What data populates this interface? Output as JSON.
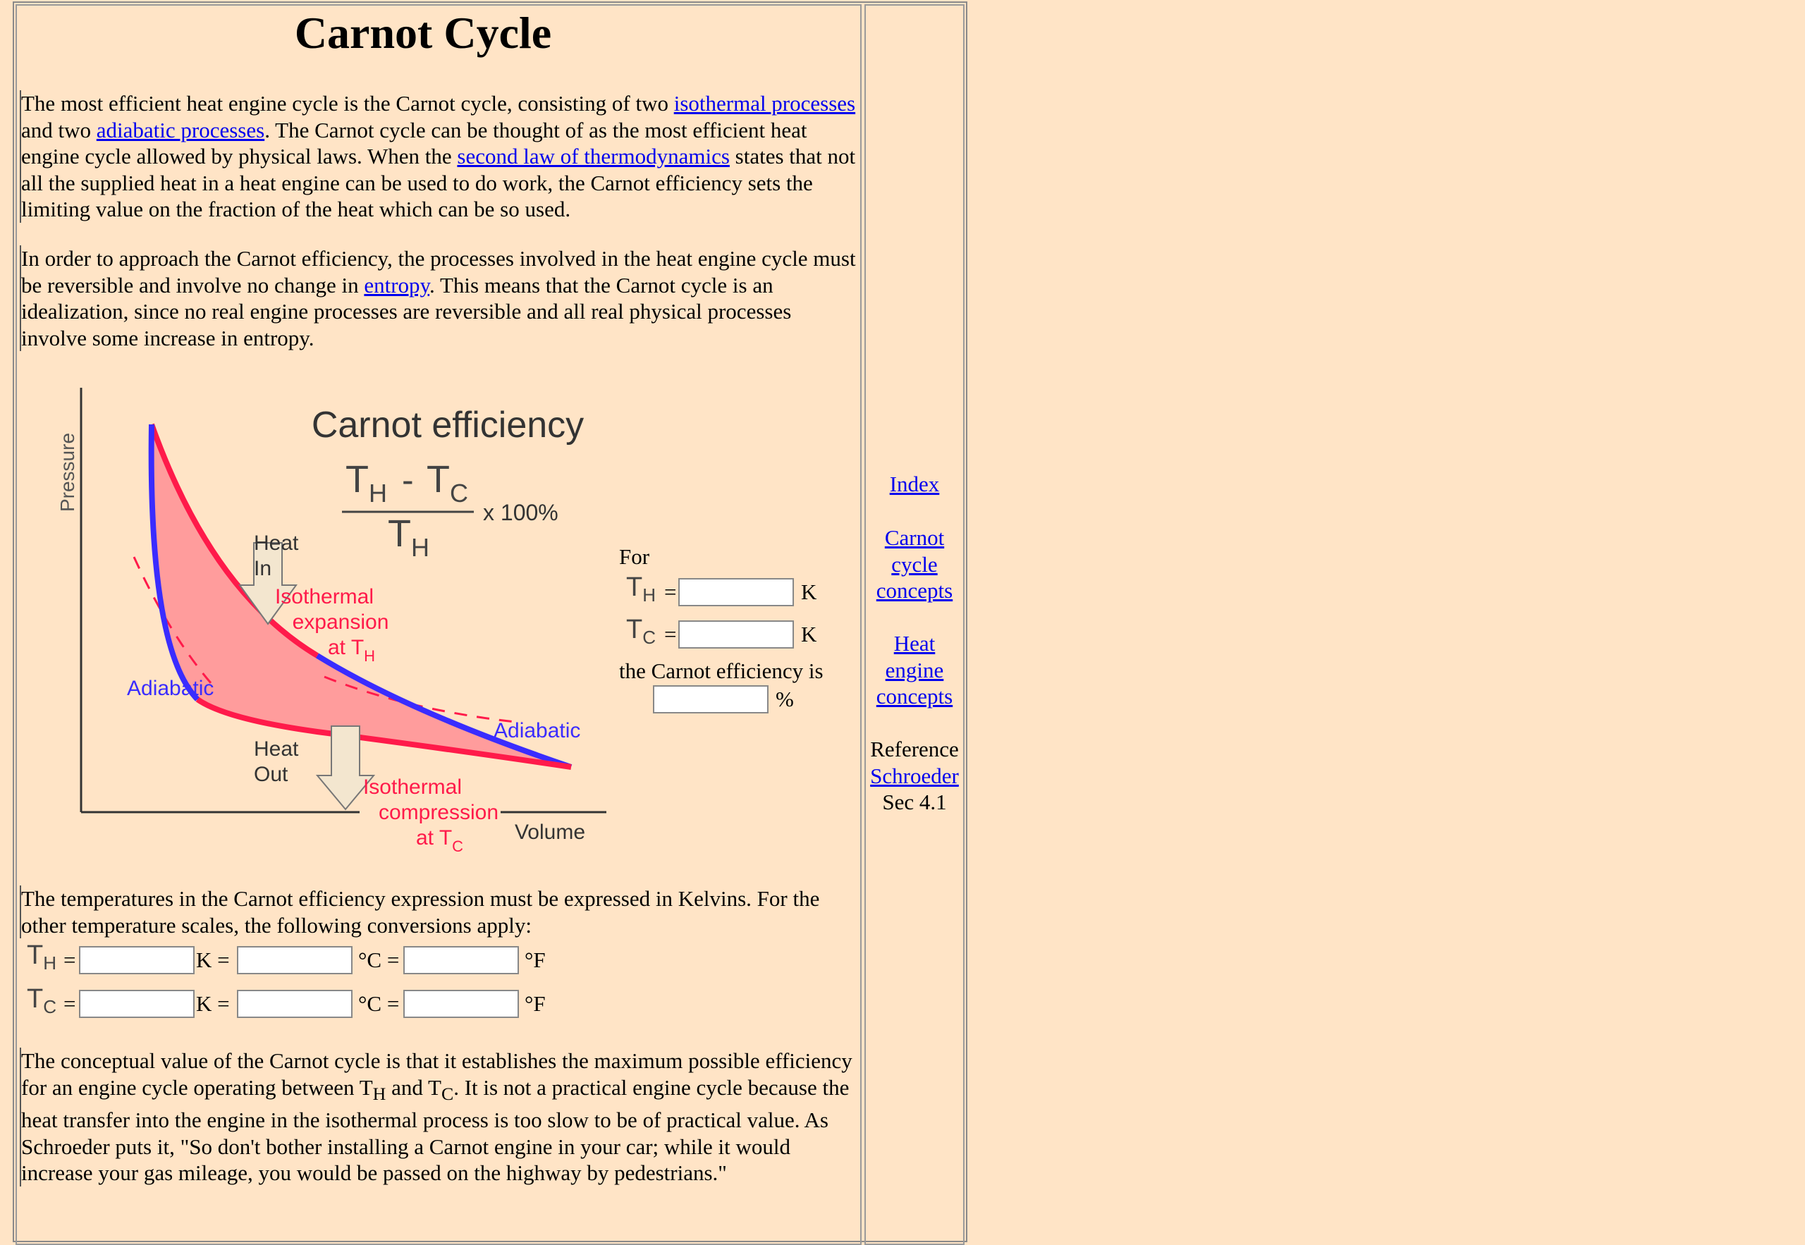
{
  "page": {
    "title": "Carnot Cycle"
  },
  "intro": {
    "p1_a": "The most efficient heat engine cycle is the Carnot cycle, consisting of two ",
    "link_isothermal": "isothermal processes",
    "p1_b": " and two ",
    "link_adiabatic": "adiabatic processes",
    "p1_c": ". The Carnot cycle can be thought of as the most efficient heat engine cycle allowed by physical laws. When the ",
    "link_second_law": "second law of thermodynamics",
    "p1_d": " states that not all the supplied heat in a heat engine can be used to do work, the Carnot efficiency sets the limiting value on the fraction of the heat which can be so used.",
    "p2_a": "In order to approach the Carnot efficiency, the processes involved in the heat engine cycle must be reversible and involve no change in ",
    "link_entropy": "entropy",
    "p2_b": ". This means that the Carnot cycle is an idealization, since no real engine processes are reversible and all real physical processes involve some increase in entropy."
  },
  "diagram": {
    "y_axis_label": "Pressure",
    "x_axis_label": "Volume",
    "heading": "Carnot efficiency",
    "formula_num_left": "T",
    "formula_num_left_sub": "H",
    "formula_minus": "-",
    "formula_num_right": "T",
    "formula_num_right_sub": "C",
    "formula_den": "T",
    "formula_den_sub": "H",
    "formula_times": "x 100%",
    "heat_in_1": "Heat",
    "heat_in_2": "In",
    "iso_exp_1": "Isothermal",
    "iso_exp_2": "expansion",
    "iso_exp_3": "at T",
    "iso_exp_3_sub": "H",
    "adiabatic_left": "Adiabatic",
    "adiabatic_right": "Adiabatic",
    "heat_out_1": "Heat",
    "heat_out_2": "Out",
    "iso_comp_1": "Isothermal",
    "iso_comp_2": "compression",
    "iso_comp_3": "at T",
    "iso_comp_3_sub": "C",
    "colors": {
      "isothermal": "#ff1a4a",
      "adiabatic": "#3a2cff",
      "fill": "#ff9c9c"
    }
  },
  "calculator": {
    "for_label": "For",
    "th_symbol": "T",
    "th_sub": "H",
    "tc_symbol": "T",
    "tc_sub": "C",
    "equals": "=",
    "unit_k": "K",
    "result_label": "the Carnot efficiency is",
    "unit_percent": "%",
    "th_value": "",
    "tc_value": "",
    "efficiency_value": ""
  },
  "conversions": {
    "intro": "The temperatures in the Carnot efficiency expression must be expressed in Kelvins. For the other temperature scales, the following conversions apply:",
    "k_eq": "K =",
    "c_eq": "°C =",
    "f_unit": "°F",
    "th_k": "",
    "th_c": "",
    "th_f": "",
    "tc_k": "",
    "tc_c": "",
    "tc_f": ""
  },
  "conclusion": {
    "a": "The conceptual value of the Carnot cycle is that it establishes the maximum possible efficiency for an engine cycle operating between T",
    "a_sub": "H",
    "b": " and T",
    "b_sub": "C",
    "c": ". It is not a practical engine cycle because the heat transfer into the engine in the isothermal process is too slow to be of practical value. As Schroeder puts it, \"So don't bother installing a Carnot engine in your car; while it would increase your gas mileage, you would be passed on the highway by pedestrians.\""
  },
  "sidebar": {
    "index": "Index",
    "carnot_concepts": [
      "Carnot",
      "cycle",
      "concepts"
    ],
    "heat_engine_concepts": [
      "Heat",
      "engine",
      "concepts"
    ],
    "reference_label": "Reference",
    "reference_link": "Schroeder",
    "reference_section": "Sec 4.1"
  }
}
